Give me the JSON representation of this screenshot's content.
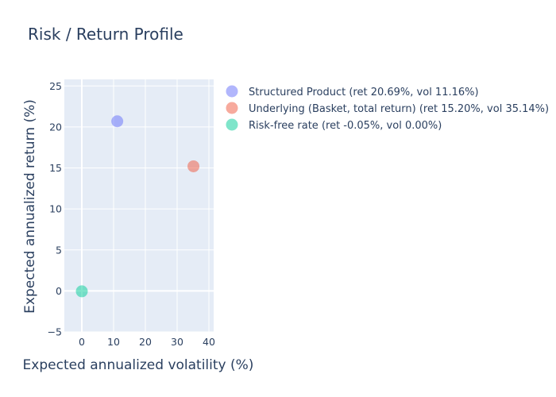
{
  "chart_data": {
    "type": "scatter",
    "title": "Risk / Return Profile",
    "xlabel": "Expected annualized volatility (%)",
    "ylabel": "Expected annualized return (%)",
    "xlim": [
      -5.5,
      41.5
    ],
    "ylim": [
      -5,
      25.8
    ],
    "xticks": [
      0,
      10,
      20,
      30,
      40
    ],
    "yticks": [
      -5,
      0,
      5,
      10,
      15,
      20,
      25
    ],
    "grid": true,
    "legend_position": "top-right",
    "series": [
      {
        "name": "Structured Product (ret 20.69%, vol 11.16%)",
        "x": [
          11.16
        ],
        "y": [
          20.69
        ],
        "color": "#636efa"
      },
      {
        "name": "Underlying (Basket, total return) (ret 15.20%, vol 35.14%)",
        "x": [
          35.14
        ],
        "y": [
          15.2
        ],
        "color": "#ef553b"
      },
      {
        "name": "Risk-free rate (ret -0.05%, vol 0.00%)",
        "x": [
          0.0
        ],
        "y": [
          -0.05
        ],
        "color": "#00cc96"
      }
    ]
  }
}
